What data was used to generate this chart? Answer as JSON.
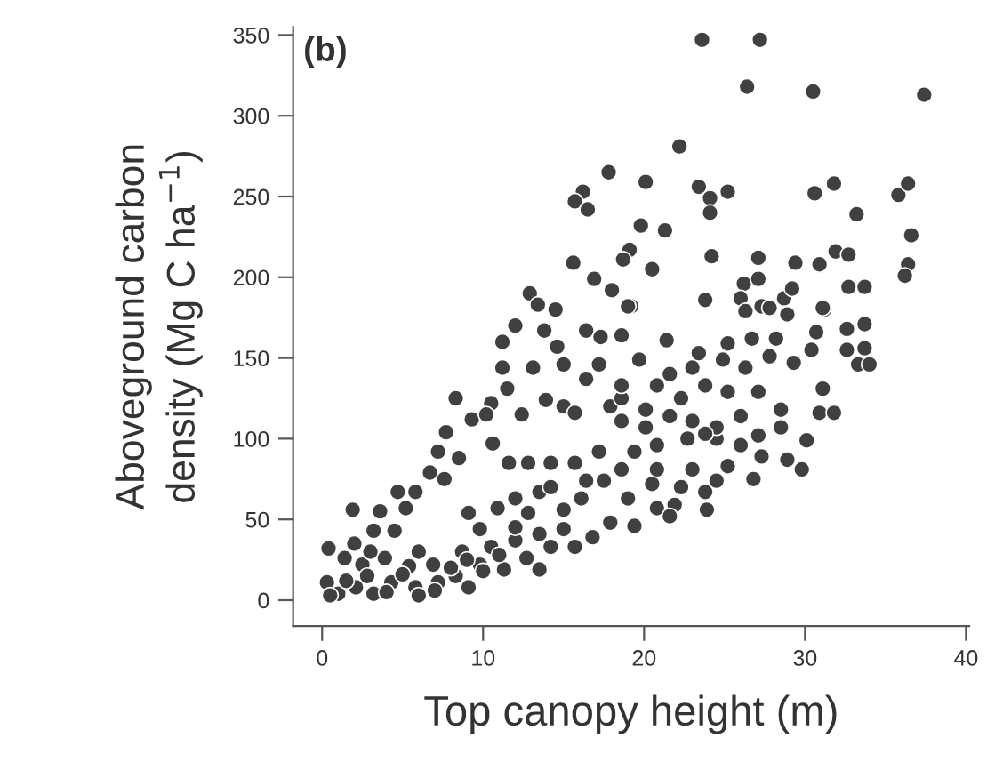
{
  "chart_data": {
    "type": "scatter",
    "title": "(b)",
    "xlabel": "Top canopy height (m)",
    "ylabel": "Aboveground carbon\ndensity (Mg C ha$^{−1}$)",
    "xlim": [
      -1.8,
      40.2
    ],
    "ylim": [
      -16,
      355
    ],
    "xticks": [
      0,
      10,
      20,
      30,
      40
    ],
    "yticks": [
      0,
      50,
      100,
      150,
      200,
      250,
      300,
      350
    ],
    "grid": false,
    "marker": "circle",
    "series": [
      {
        "color": "#404040",
        "x": [
          23.6,
          27.2,
          26.4,
          30.5,
          37.4,
          22.2,
          17.8,
          20.1,
          16.2,
          15.7,
          16.5,
          23.4,
          24.1,
          25.2,
          24.1,
          30.6,
          31.8,
          35.8,
          36.4,
          33.2,
          36.6,
          19.8,
          21.3,
          19.1,
          18.7,
          15.6,
          20.5,
          16.9,
          18.0,
          12.9,
          13.4,
          14.5,
          19.2,
          24.2,
          27.1,
          29.4,
          30.9,
          31.9,
          32.7,
          36.4,
          36.2,
          32.7,
          33.7,
          26.2,
          27.1,
          23.8,
          26.0,
          28.7,
          29.2,
          31.2,
          27.3,
          12.0,
          13.8,
          16.4,
          17.3,
          18.6,
          14.6,
          11.2,
          11.2,
          13.1,
          15.0,
          17.2,
          8.3,
          10.5,
          11.5,
          12.4,
          13.9,
          15.0,
          15.7,
          17.9,
          18.6,
          9.3,
          10.2,
          7.7,
          7.2,
          8.5,
          10.6,
          6.7,
          7.6,
          4.7,
          5.8,
          1.9,
          3.6,
          5.2,
          3.2,
          4.5,
          0.4,
          1.4,
          2.5,
          3.9,
          5.4,
          6.9,
          0.3,
          1.0,
          2.1,
          3.2,
          4.3,
          5.8,
          7.2,
          8.3,
          9.1,
          8.7,
          9.8,
          10.5,
          11.3,
          12.0,
          12.7,
          13.5,
          14.2,
          15.0,
          15.7,
          16.8,
          10.9,
          12.0,
          13.5,
          15.0,
          16.1,
          17.5,
          19.0,
          17.9,
          19.4,
          20.8,
          21.9,
          23.9,
          21.6,
          20.5,
          22.3,
          23.8,
          24.5,
          23.0,
          25.2,
          26.8,
          28.9,
          29.8,
          30.1,
          27.3,
          26.0,
          24.5,
          22.7,
          20.8,
          19.4,
          17.2,
          15.7,
          14.2,
          12.8,
          11.6,
          18.6,
          20.1,
          21.6,
          23.0,
          24.5,
          26.0,
          27.1,
          28.5,
          30.9,
          31.8,
          31.1,
          28.5,
          27.1,
          25.2,
          23.8,
          22.3,
          20.8,
          20.1,
          21.6,
          23.0,
          24.9,
          26.3,
          27.8,
          29.3,
          30.4,
          32.6,
          33.7,
          33.3,
          34.0,
          33.7,
          32.6,
          31.1,
          28.2,
          26.7,
          25.2,
          23.4,
          21.4,
          19.7,
          27.8,
          28.9,
          30.7,
          26.3,
          19.0,
          18.6,
          16.4,
          23.8,
          20.8,
          18.6,
          16.4,
          14.2,
          12.8,
          13.5,
          9.8,
          9.1,
          0.5,
          1.5,
          2.8,
          4.0,
          5.0,
          6.0,
          7.0,
          3.0,
          2.0,
          8.0,
          9.0,
          10.0,
          11.0,
          12.0,
          6.0
        ],
        "values": [
          347,
          347,
          318,
          315,
          313,
          281,
          265,
          259,
          253,
          247,
          242,
          256,
          249,
          253,
          240,
          252,
          258,
          251,
          258,
          239,
          226,
          232,
          229,
          217,
          211,
          209,
          205,
          199,
          192,
          190,
          183,
          180,
          182,
          213,
          212,
          209,
          208,
          216,
          214,
          208,
          201,
          194,
          194,
          196,
          199,
          186,
          187,
          187,
          193,
          180,
          182,
          170,
          167,
          167,
          163,
          164,
          157,
          160,
          144,
          144,
          146,
          146,
          125,
          122,
          131,
          115,
          124,
          120,
          116,
          120,
          125,
          112,
          115,
          104,
          92,
          88,
          97,
          79,
          75,
          67,
          67,
          56,
          55,
          57,
          43,
          43,
          32,
          26,
          22,
          26,
          21,
          22,
          11,
          4,
          8,
          4,
          11,
          8,
          11,
          15,
          8,
          30,
          22,
          33,
          19,
          37,
          26,
          19,
          33,
          44,
          33,
          39,
          57,
          63,
          67,
          56,
          63,
          74,
          63,
          48,
          46,
          57,
          59,
          56,
          52,
          72,
          70,
          67,
          74,
          81,
          83,
          75,
          87,
          81,
          99,
          89,
          96,
          100,
          100,
          96,
          92,
          92,
          85,
          85,
          85,
          85,
          111,
          107,
          114,
          111,
          107,
          114,
          102,
          107,
          116,
          116,
          131,
          118,
          129,
          129,
          133,
          125,
          133,
          118,
          140,
          144,
          149,
          144,
          151,
          147,
          155,
          155,
          156,
          146,
          146,
          171,
          168,
          181,
          162,
          162,
          159,
          153,
          161,
          149,
          181,
          177,
          166,
          179,
          182,
          133,
          137,
          103,
          81,
          81,
          74,
          70,
          54,
          41,
          44,
          54,
          3,
          12,
          15,
          5,
          16,
          3,
          6,
          30,
          35,
          20,
          25,
          18,
          28,
          45,
          30
        ]
      }
    ]
  }
}
